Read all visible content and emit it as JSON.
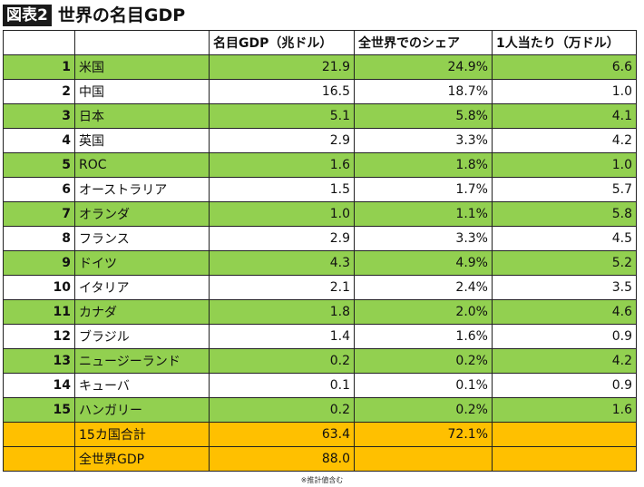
{
  "figure": {
    "label": "図表2",
    "title": "世界の名目GDP"
  },
  "table": {
    "headers": [
      "",
      "",
      "名目GDP（兆ドル）",
      "全世界でのシェア",
      "1人当たり（万ドル）"
    ],
    "rows": [
      {
        "rank": "1",
        "name": "米国",
        "gdp": "21.9",
        "share": "24.9%",
        "per_capita": "6.6"
      },
      {
        "rank": "2",
        "name": "中国",
        "gdp": "16.5",
        "share": "18.7%",
        "per_capita": "1.0"
      },
      {
        "rank": "3",
        "name": "日本",
        "gdp": "5.1",
        "share": "5.8%",
        "per_capita": "4.1"
      },
      {
        "rank": "4",
        "name": "英国",
        "gdp": "2.9",
        "share": "3.3%",
        "per_capita": "4.2"
      },
      {
        "rank": "5",
        "name": "ROC",
        "gdp": "1.6",
        "share": "1.8%",
        "per_capita": "1.0"
      },
      {
        "rank": "6",
        "name": "オーストラリア",
        "gdp": "1.5",
        "share": "1.7%",
        "per_capita": "5.7"
      },
      {
        "rank": "7",
        "name": "オランダ",
        "gdp": "1.0",
        "share": "1.1%",
        "per_capita": "5.8"
      },
      {
        "rank": "8",
        "name": "フランス",
        "gdp": "2.9",
        "share": "3.3%",
        "per_capita": "4.5"
      },
      {
        "rank": "9",
        "name": "ドイツ",
        "gdp": "4.3",
        "share": "4.9%",
        "per_capita": "5.2"
      },
      {
        "rank": "10",
        "name": "イタリア",
        "gdp": "2.1",
        "share": "2.4%",
        "per_capita": "3.5"
      },
      {
        "rank": "11",
        "name": "カナダ",
        "gdp": "1.8",
        "share": "2.0%",
        "per_capita": "4.6"
      },
      {
        "rank": "12",
        "name": "ブラジル",
        "gdp": "1.4",
        "share": "1.6%",
        "per_capita": "0.9"
      },
      {
        "rank": "13",
        "name": "ニュージーランド",
        "gdp": "0.2",
        "share": "0.2%",
        "per_capita": "4.2"
      },
      {
        "rank": "14",
        "name": "キューバ",
        "gdp": "0.1",
        "share": "0.1%",
        "per_capita": "0.9"
      },
      {
        "rank": "15",
        "name": "ハンガリー",
        "gdp": "0.2",
        "share": "0.2%",
        "per_capita": "1.6"
      }
    ],
    "totals": [
      {
        "name": "15カ国合計",
        "gdp": "63.4",
        "share": "72.1%",
        "per_capita": ""
      },
      {
        "name": "全世界GDP",
        "gdp": "88.0",
        "share": "",
        "per_capita": ""
      }
    ]
  },
  "footnote": "※推計値含む",
  "colors": {
    "highlight_row": "#92d050",
    "total_row": "#ffc000",
    "plain_row": "#ffffff"
  }
}
